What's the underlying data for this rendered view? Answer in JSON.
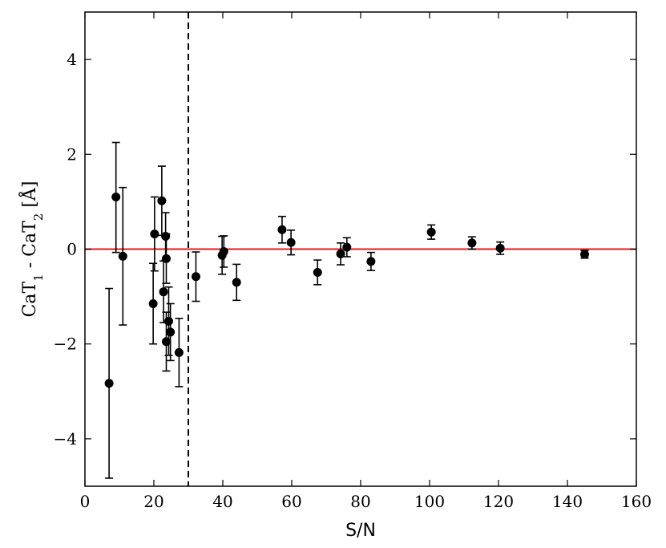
{
  "chart_data": {
    "type": "scatter",
    "title": "",
    "xlabel": "S/N",
    "ylabel": {
      "parts": [
        "CaT",
        "1",
        " - CaT",
        "2",
        " [Å]"
      ],
      "full": "CaT1 - CaT2 [Å]"
    },
    "xlim": [
      0,
      160
    ],
    "ylim": [
      -5,
      5
    ],
    "xticks": [
      0,
      20,
      40,
      60,
      80,
      100,
      120,
      140,
      160
    ],
    "yticks": [
      -4,
      -2,
      0,
      2,
      4
    ],
    "xtick_labels": [
      "0",
      "20",
      "40",
      "60",
      "80",
      "100",
      "120",
      "140",
      "160"
    ],
    "ytick_labels": [
      "−4",
      "−2",
      "0",
      "2",
      "4"
    ],
    "grid": false,
    "reference_lines": [
      {
        "orientation": "horizontal",
        "value": 0,
        "color": "#e31a1c",
        "style": "solid"
      },
      {
        "orientation": "vertical",
        "value": 30,
        "color": "#000000",
        "style": "dashed"
      }
    ],
    "points": [
      {
        "x": 7.0,
        "y": -2.83,
        "yerr_low": 2.0,
        "yerr_high": 2.0
      },
      {
        "x": 9.0,
        "y": 1.1,
        "yerr_low": 1.17,
        "yerr_high": 1.15
      },
      {
        "x": 11.0,
        "y": -0.15,
        "yerr_low": 1.45,
        "yerr_high": 1.45
      },
      {
        "x": 19.8,
        "y": -1.15,
        "yerr_low": 0.85,
        "yerr_high": 0.85
      },
      {
        "x": 20.2,
        "y": 0.32,
        "yerr_low": 0.78,
        "yerr_high": 0.78
      },
      {
        "x": 22.3,
        "y": 1.02,
        "yerr_low": 0.73,
        "yerr_high": 0.73
      },
      {
        "x": 22.8,
        "y": -0.9,
        "yerr_low": 0.65,
        "yerr_high": 0.65
      },
      {
        "x": 23.4,
        "y": 0.27,
        "yerr_low": 0.5,
        "yerr_high": 0.5
      },
      {
        "x": 23.6,
        "y": -0.2,
        "yerr_low": 0.52,
        "yerr_high": 0.52
      },
      {
        "x": 23.6,
        "y": -1.95,
        "yerr_low": 0.62,
        "yerr_high": 0.62
      },
      {
        "x": 24.3,
        "y": -1.52,
        "yerr_low": 0.72,
        "yerr_high": 0.72
      },
      {
        "x": 24.8,
        "y": -1.75,
        "yerr_low": 0.6,
        "yerr_high": 0.6
      },
      {
        "x": 27.3,
        "y": -2.18,
        "yerr_low": 0.72,
        "yerr_high": 0.72
      },
      {
        "x": 32.2,
        "y": -0.58,
        "yerr_low": 0.52,
        "yerr_high": 0.52
      },
      {
        "x": 39.8,
        "y": -0.13,
        "yerr_low": 0.4,
        "yerr_high": 0.4
      },
      {
        "x": 40.3,
        "y": -0.05,
        "yerr_low": 0.33,
        "yerr_high": 0.33
      },
      {
        "x": 44.0,
        "y": -0.7,
        "yerr_low": 0.38,
        "yerr_high": 0.38
      },
      {
        "x": 57.2,
        "y": 0.41,
        "yerr_low": 0.28,
        "yerr_high": 0.28
      },
      {
        "x": 59.8,
        "y": 0.14,
        "yerr_low": 0.26,
        "yerr_high": 0.26
      },
      {
        "x": 67.5,
        "y": -0.49,
        "yerr_low": 0.26,
        "yerr_high": 0.26
      },
      {
        "x": 74.2,
        "y": -0.1,
        "yerr_low": 0.23,
        "yerr_high": 0.23
      },
      {
        "x": 76.0,
        "y": 0.04,
        "yerr_low": 0.2,
        "yerr_high": 0.2
      },
      {
        "x": 83.0,
        "y": -0.26,
        "yerr_low": 0.19,
        "yerr_high": 0.19
      },
      {
        "x": 100.5,
        "y": 0.36,
        "yerr_low": 0.15,
        "yerr_high": 0.15
      },
      {
        "x": 112.3,
        "y": 0.13,
        "yerr_low": 0.13,
        "yerr_high": 0.13
      },
      {
        "x": 120.5,
        "y": 0.02,
        "yerr_low": 0.13,
        "yerr_high": 0.13
      },
      {
        "x": 145.0,
        "y": -0.11,
        "yerr_low": 0.08,
        "yerr_high": 0.08
      }
    ],
    "marker_color": "#000000"
  }
}
